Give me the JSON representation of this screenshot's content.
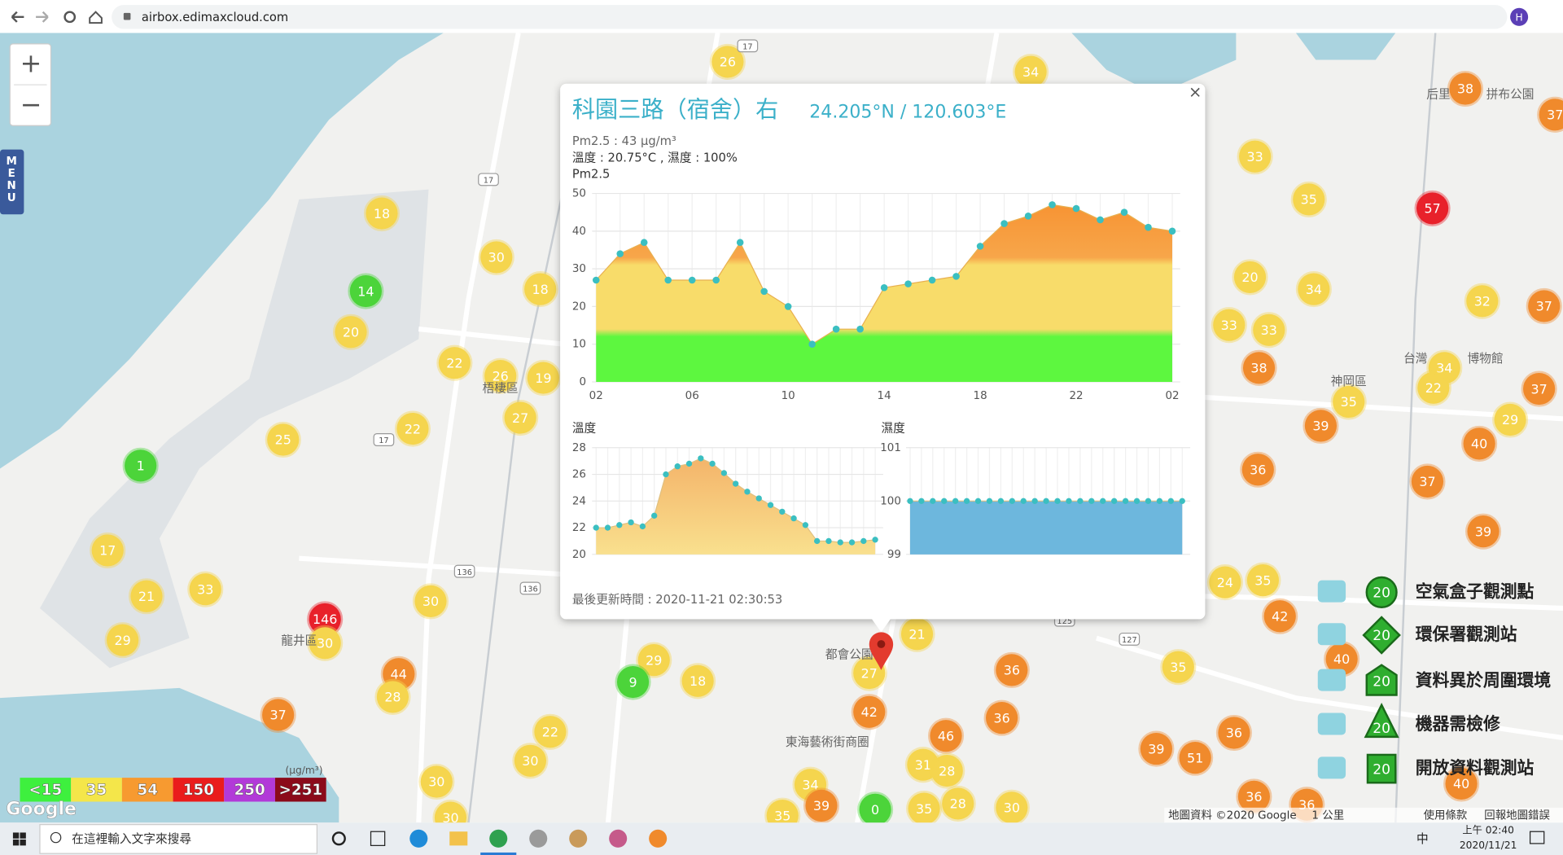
{
  "browser": {
    "url": "airbox.edimaxcloud.com",
    "profile": "H"
  },
  "zoom": {
    "in": "+",
    "out": "−"
  },
  "menu": "MENU",
  "map": {
    "markers": [
      {
        "value": 26,
        "color": "#f5d54e"
      },
      {
        "value": 34,
        "color": "#f5d54e"
      },
      {
        "value": 38,
        "color": "#f08a2c"
      },
      {
        "value": 37,
        "color": "#f08a2c"
      },
      {
        "value": 18,
        "color": "#f5d54e"
      },
      {
        "value": 33,
        "color": "#f5d54e"
      },
      {
        "value": 35,
        "color": "#f5d54e"
      },
      {
        "value": 57,
        "color": "#e8212b"
      },
      {
        "value": 30,
        "color": "#f5d54e"
      },
      {
        "value": 14,
        "color": "#4cd43a"
      },
      {
        "value": 18,
        "color": "#f5d54e"
      },
      {
        "value": 20,
        "color": "#f5d54e"
      },
      {
        "value": 34,
        "color": "#f5d54e"
      },
      {
        "value": 32,
        "color": "#f5d54e"
      },
      {
        "value": 37,
        "color": "#f08a2c"
      },
      {
        "value": 20,
        "color": "#f5d54e"
      },
      {
        "value": 33,
        "color": "#f5d54e"
      },
      {
        "value": 33,
        "color": "#f5d54e"
      },
      {
        "value": 22,
        "color": "#f5d54e"
      },
      {
        "value": 26,
        "color": "#f5d54e"
      },
      {
        "value": 19,
        "color": "#f5d54e"
      },
      {
        "value": 38,
        "color": "#f08a2c"
      },
      {
        "value": 34,
        "color": "#f5d54e"
      },
      {
        "value": 22,
        "color": "#f5d54e"
      },
      {
        "value": 37,
        "color": "#f08a2c"
      },
      {
        "value": 35,
        "color": "#f5d54e"
      },
      {
        "value": 27,
        "color": "#f5d54e"
      },
      {
        "value": 22,
        "color": "#f5d54e"
      },
      {
        "value": 39,
        "color": "#f08a2c"
      },
      {
        "value": 29,
        "color": "#f5d54e"
      },
      {
        "value": 25,
        "color": "#f5d54e"
      },
      {
        "value": 40,
        "color": "#f08a2c"
      },
      {
        "value": 1,
        "color": "#4cd43a"
      },
      {
        "value": 36,
        "color": "#f08a2c"
      },
      {
        "value": 37,
        "color": "#f08a2c"
      },
      {
        "value": 39,
        "color": "#f08a2c"
      },
      {
        "value": 17,
        "color": "#f5d54e"
      },
      {
        "value": 24,
        "color": "#f5d54e"
      },
      {
        "value": 35,
        "color": "#f5d54e"
      },
      {
        "value": 21,
        "color": "#f5d54e"
      },
      {
        "value": 33,
        "color": "#f5d54e"
      },
      {
        "value": 30,
        "color": "#f5d54e"
      },
      {
        "value": 42,
        "color": "#f08a2c"
      },
      {
        "value": 146,
        "color": "#e8212b"
      },
      {
        "value": 30,
        "color": "#f5d54e"
      },
      {
        "value": 21,
        "color": "#f5d54e"
      },
      {
        "value": 29,
        "color": "#f5d54e"
      },
      {
        "value": 29,
        "color": "#f5d54e"
      },
      {
        "value": 40,
        "color": "#f08a2c"
      },
      {
        "value": 9,
        "color": "#4cd43a"
      },
      {
        "value": 18,
        "color": "#f5d54e"
      },
      {
        "value": 27,
        "color": "#f5d54e"
      },
      {
        "value": 36,
        "color": "#f08a2c"
      },
      {
        "value": 35,
        "color": "#f5d54e"
      },
      {
        "value": 44,
        "color": "#f08a2c"
      },
      {
        "value": 28,
        "color": "#f5d54e"
      },
      {
        "value": 37,
        "color": "#f08a2c"
      },
      {
        "value": 42,
        "color": "#f08a2c"
      },
      {
        "value": 36,
        "color": "#f08a2c"
      },
      {
        "value": 22,
        "color": "#f5d54e"
      },
      {
        "value": 46,
        "color": "#f08a2c"
      },
      {
        "value": 36,
        "color": "#f08a2c"
      },
      {
        "value": 30,
        "color": "#f5d54e"
      },
      {
        "value": 31,
        "color": "#f5d54e"
      },
      {
        "value": 28,
        "color": "#f5d54e"
      },
      {
        "value": 39,
        "color": "#f08a2c"
      },
      {
        "value": 51,
        "color": "#f08a2c"
      },
      {
        "value": 30,
        "color": "#f5d54e"
      },
      {
        "value": 34,
        "color": "#f5d54e"
      },
      {
        "value": 39,
        "color": "#f08a2c"
      },
      {
        "value": 0,
        "color": "#4cd43a"
      },
      {
        "value": 35,
        "color": "#f5d54e"
      },
      {
        "value": 28,
        "color": "#f5d54e"
      },
      {
        "value": 30,
        "color": "#f5d54e"
      },
      {
        "value": 36,
        "color": "#f08a2c"
      },
      {
        "value": 36,
        "color": "#f08a2c"
      },
      {
        "value": 40,
        "color": "#f08a2c"
      },
      {
        "value": 30,
        "color": "#f5d54e"
      },
      {
        "value": 35,
        "color": "#f5d54e"
      }
    ],
    "labels": [
      "龍井區",
      "梧棲區",
      "都會公園",
      "東海藝術街商圈",
      "神岡區",
      "后里",
      "拼布公園",
      "台灣",
      "博物館"
    ],
    "roads": [
      "136",
      "136",
      "127",
      "125",
      "17",
      "17",
      "17"
    ],
    "google": "Google",
    "attribution": [
      "地圖資料 ©2020 Google",
      "1 公里",
      "使用條款",
      "回報地圖錯誤"
    ]
  },
  "popup": {
    "title": "科園三路（宿舍）右",
    "coords": "24.205°N / 120.603°E",
    "close": "×",
    "pm25_line": "Pm2.5 : 43 μg/m³",
    "env_line": "溫度 : 20.75°C , 濕度 : 100%",
    "updated": "最後更新時間 : 2020-11-21 02:30:53"
  },
  "chart_data": [
    {
      "type": "area",
      "title": "Pm2.5",
      "categories": [
        "02",
        null,
        null,
        null,
        "06",
        null,
        null,
        null,
        "10",
        null,
        null,
        null,
        "14",
        null,
        null,
        null,
        "18",
        null,
        null,
        null,
        "22",
        null,
        null,
        null,
        "02"
      ],
      "values": [
        27,
        34,
        37,
        27,
        27,
        27,
        37,
        24,
        20,
        10,
        14,
        14,
        25,
        26,
        27,
        28,
        36,
        42,
        44,
        47,
        46,
        43,
        45,
        41,
        40
      ],
      "ylim": [
        0,
        50
      ],
      "yticks": [
        0,
        10,
        20,
        30,
        40,
        50
      ],
      "grid": true,
      "color": "#3bbfc1"
    },
    {
      "type": "area",
      "title": "溫度",
      "values": [
        22,
        22,
        22.2,
        22.4,
        22.1,
        22.9,
        26,
        26.6,
        26.8,
        27.2,
        26.8,
        26.1,
        25.3,
        24.7,
        24.2,
        23.7,
        23.2,
        22.7,
        22.2,
        21.0,
        21.0,
        20.9,
        20.9,
        21.0,
        21.1
      ],
      "ylim": [
        20,
        28
      ],
      "yticks": [
        20,
        22,
        24,
        26,
        28
      ],
      "grid": true,
      "color": "#3bbfc1"
    },
    {
      "type": "area",
      "title": "濕度",
      "values": [
        100,
        100,
        100,
        100,
        100,
        100,
        100,
        100,
        100,
        100,
        100,
        100,
        100,
        100,
        100,
        100,
        100,
        100,
        100,
        100,
        100,
        100,
        100,
        100,
        100
      ],
      "ylim": [
        99,
        101
      ],
      "yticks": [
        99,
        100,
        101
      ],
      "grid": true,
      "color": "#3bbfc1"
    }
  ],
  "aqi_legend": {
    "unit": "(μg/m³)",
    "items": [
      {
        "label": "<15",
        "color": "#3ef03e"
      },
      {
        "label": "35",
        "color": "#f4e64a"
      },
      {
        "label": "54",
        "color": "#f79a30"
      },
      {
        "label": "150",
        "color": "#ea1c1c"
      },
      {
        "label": "250",
        "color": "#b23ad8"
      },
      {
        "label": ">251",
        "color": "#8b0a1a"
      }
    ]
  },
  "station_legend": {
    "items": [
      {
        "label": "空氣盒子觀測點",
        "badge": 20
      },
      {
        "label": "環保署觀測站",
        "badge": 20
      },
      {
        "label": "資料異於周圍環境",
        "badge": 20
      },
      {
        "label": "機器需檢修",
        "badge": 20
      },
      {
        "label": "開放資料觀測站",
        "badge": 20
      }
    ]
  },
  "taskbar": {
    "search": "在這裡輸入文字來搜尋",
    "ime": "中",
    "time": "上午 02:40",
    "date": "2020/11/21"
  }
}
